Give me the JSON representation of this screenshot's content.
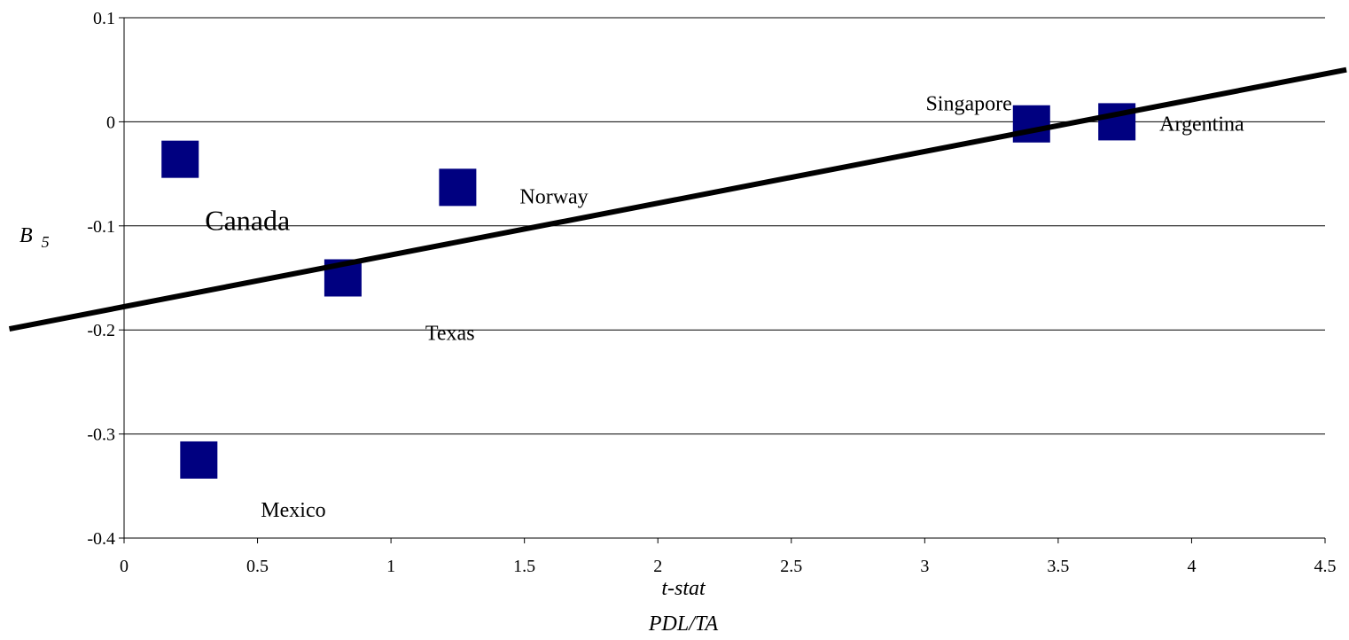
{
  "chart_data": {
    "type": "scatter",
    "title": "",
    "xlabel": "t-stat",
    "xlabel2": "PDL/TA",
    "ylabel": "B",
    "ylabel_sub": "5",
    "xlim": [
      0,
      4.5
    ],
    "ylim": [
      -0.4,
      0.1
    ],
    "x_ticks": [
      0,
      0.5,
      1,
      1.5,
      2,
      2.5,
      3,
      3.5,
      4,
      4.5
    ],
    "x_tick_labels": [
      "0",
      "0.5",
      "1",
      "1.5",
      "2",
      "2.5",
      "3",
      "3.5",
      "4",
      "4.5"
    ],
    "y_ticks": [
      0.1,
      0,
      -0.1,
      -0.2,
      -0.3,
      -0.4
    ],
    "y_tick_labels": [
      "0.1",
      "0",
      "-0.1",
      "-0.2",
      "-0.3",
      "-0.4"
    ],
    "grid": "horizontal",
    "marker_color": "#000080",
    "trendline_color": "#000000",
    "points": [
      {
        "label": "Canada",
        "x": 0.21,
        "y": -0.036,
        "label_size": "large"
      },
      {
        "label": "Norway",
        "x": 1.25,
        "y": -0.063,
        "label_size": "normal"
      },
      {
        "label": "Texas",
        "x": 0.82,
        "y": -0.15,
        "label_size": "normal"
      },
      {
        "label": "Mexico",
        "x": 0.28,
        "y": -0.325,
        "label_size": "normal"
      },
      {
        "label": "Singapore",
        "x": 3.4,
        "y": -0.002,
        "label_size": "normal"
      },
      {
        "label": "Argentina",
        "x": 3.72,
        "y": 0.0,
        "label_size": "normal"
      }
    ],
    "trendline": {
      "x0": -0.43,
      "y0": -0.199,
      "x1": 4.58,
      "y1": 0.05
    }
  }
}
